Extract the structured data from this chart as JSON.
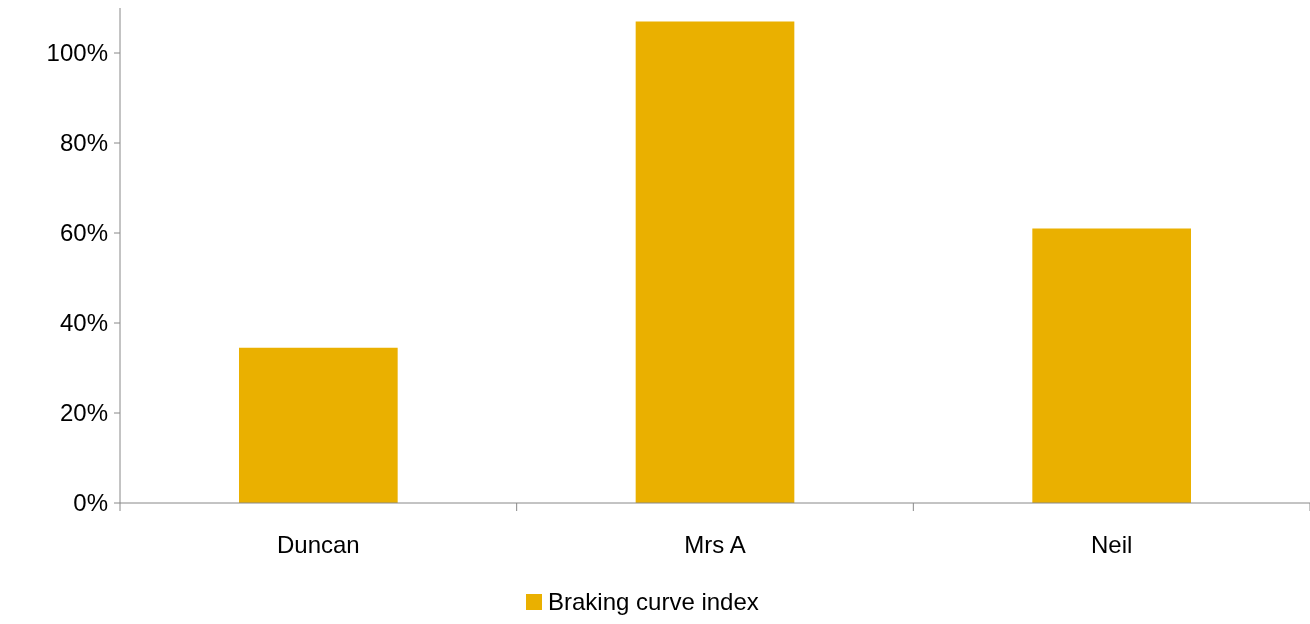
{
  "chart_data": {
    "type": "bar",
    "categories": [
      "Duncan",
      "Mrs A",
      "Neil"
    ],
    "series": [
      {
        "name": "Braking curve index",
        "color": "#eab000",
        "values": [
          34.5,
          107,
          61
        ]
      }
    ],
    "ylim": [
      0,
      110
    ],
    "yticks": [
      {
        "value": 0,
        "label": "0%"
      },
      {
        "value": 20,
        "label": "20%"
      },
      {
        "value": 40,
        "label": "40%"
      },
      {
        "value": 60,
        "label": "60%"
      },
      {
        "value": 80,
        "label": "80%"
      },
      {
        "value": 100,
        "label": "100%"
      }
    ],
    "legend": "bottom",
    "grid": false
  }
}
